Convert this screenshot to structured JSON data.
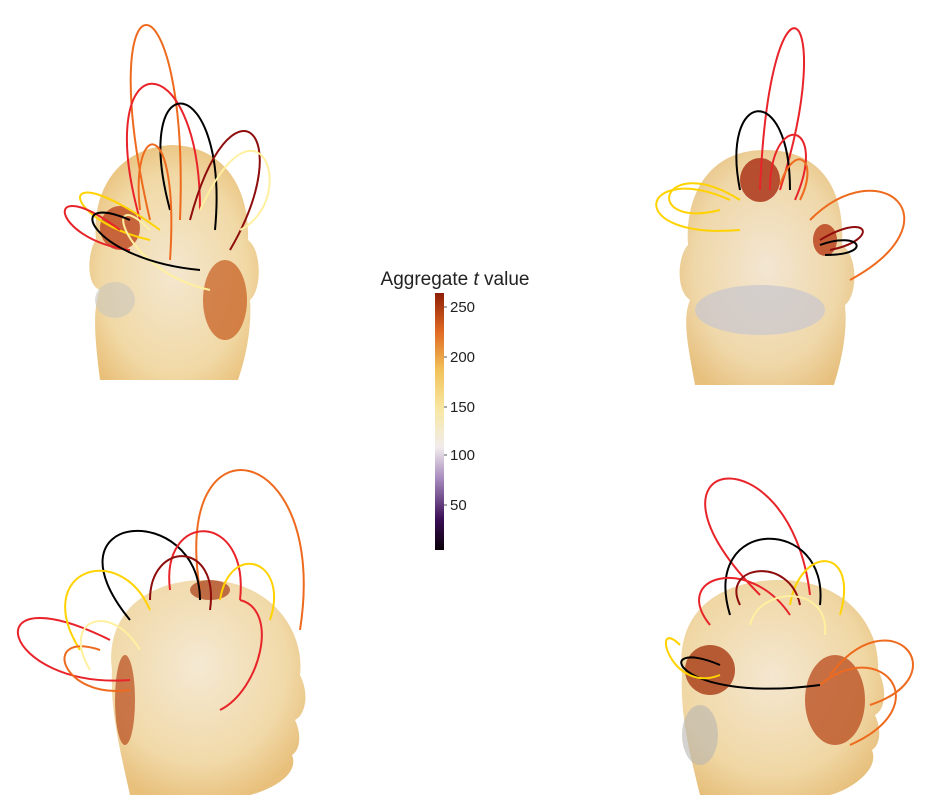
{
  "colorbar": {
    "title_prefix": "Aggregate ",
    "title_var": "t",
    "title_suffix": " value",
    "ticks": [
      "250",
      "200",
      "150",
      "100",
      "50"
    ],
    "colors": [
      "#0a0008",
      "#5a1a78",
      "#d8c8e2",
      "#f4ece0",
      "#f8e7a2",
      "#f2c25a",
      "#e06a23",
      "#8e1e06"
    ]
  },
  "curve_colors": [
    "#000000",
    "#ffd200",
    "#ee6a1e",
    "#e8242a",
    "#8e0d0d",
    "#fff0a0"
  ]
}
